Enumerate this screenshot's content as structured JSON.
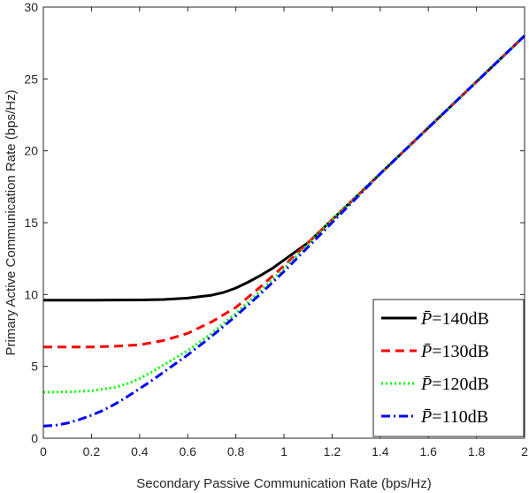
{
  "chart_data": {
    "type": "line",
    "xlabel": "Secondary Passive Communication Rate (bps/Hz)",
    "ylabel": "Primary Active Communication Rate (bps/Hz)",
    "xlim": [
      0,
      2
    ],
    "ylim": [
      0,
      30
    ],
    "xticks": [
      0,
      0.2,
      0.4,
      0.6,
      0.8,
      1,
      1.2,
      1.4,
      1.6,
      1.8,
      2
    ],
    "xtick_labels": [
      "0",
      "0.2",
      "0.4",
      "0.6",
      "0.8",
      "1",
      "1.2",
      "1.4",
      "1.6",
      "1.8",
      "2"
    ],
    "yticks": [
      0,
      5,
      10,
      15,
      20,
      25,
      30
    ],
    "ytick_labels": [
      "0",
      "5",
      "10",
      "15",
      "20",
      "25",
      "30"
    ],
    "grid": false,
    "legend_position": "bottom-right",
    "series": [
      {
        "name": "P̄=140dB",
        "legend_symbol": "P̄",
        "legend_value": "=140dB",
        "color": "#000000",
        "style": "solid",
        "x": [
          0,
          0.2,
          0.4,
          0.5,
          0.6,
          0.7,
          0.75,
          0.8,
          0.85,
          0.9,
          0.95,
          1.0,
          1.05,
          1.1,
          1.2,
          1.4,
          1.6,
          1.8,
          2.0
        ],
        "y": [
          9.6,
          9.6,
          9.62,
          9.65,
          9.75,
          9.95,
          10.15,
          10.45,
          10.85,
          11.3,
          11.8,
          12.4,
          13.0,
          13.6,
          15.2,
          18.4,
          21.6,
          24.8,
          28.0
        ]
      },
      {
        "name": "P̄=130dB",
        "legend_symbol": "P̄",
        "legend_value": "=130dB",
        "color": "#ff0000",
        "style": "dashed",
        "x": [
          0,
          0.2,
          0.3,
          0.4,
          0.5,
          0.6,
          0.65,
          0.7,
          0.75,
          0.8,
          0.9,
          1.0,
          1.2,
          1.4,
          1.6,
          1.8,
          2.0
        ],
        "y": [
          6.35,
          6.35,
          6.4,
          6.5,
          6.8,
          7.3,
          7.7,
          8.1,
          8.6,
          9.1,
          10.5,
          12.0,
          15.2,
          18.4,
          21.6,
          24.8,
          28.0
        ]
      },
      {
        "name": "P̄=120dB",
        "legend_symbol": "P̄",
        "legend_value": "=120dB",
        "color": "#00ff00",
        "style": "dotted",
        "x": [
          0,
          0.1,
          0.2,
          0.3,
          0.35,
          0.4,
          0.45,
          0.5,
          0.55,
          0.6,
          0.7,
          0.8,
          0.9,
          1.0,
          1.2,
          1.4,
          1.6,
          1.8,
          2.0
        ],
        "y": [
          3.2,
          3.22,
          3.3,
          3.55,
          3.8,
          4.15,
          4.6,
          5.1,
          5.6,
          6.1,
          7.3,
          8.7,
          10.2,
          11.8,
          15.2,
          18.4,
          21.6,
          24.8,
          28.0
        ]
      },
      {
        "name": "P̄=110dB",
        "legend_symbol": "P̄",
        "legend_value": "=110dB",
        "color": "#0000ff",
        "style": "dashdot",
        "x": [
          0,
          0.05,
          0.1,
          0.15,
          0.2,
          0.25,
          0.3,
          0.35,
          0.4,
          0.45,
          0.5,
          0.6,
          0.7,
          0.8,
          0.9,
          1.0,
          1.2,
          1.4,
          1.6,
          1.8,
          2.0
        ],
        "y": [
          0.85,
          0.9,
          1.05,
          1.3,
          1.6,
          1.95,
          2.4,
          2.9,
          3.45,
          4.0,
          4.6,
          5.8,
          7.1,
          8.5,
          10.0,
          11.6,
          15.0,
          18.4,
          21.6,
          24.8,
          28.0
        ]
      }
    ]
  }
}
